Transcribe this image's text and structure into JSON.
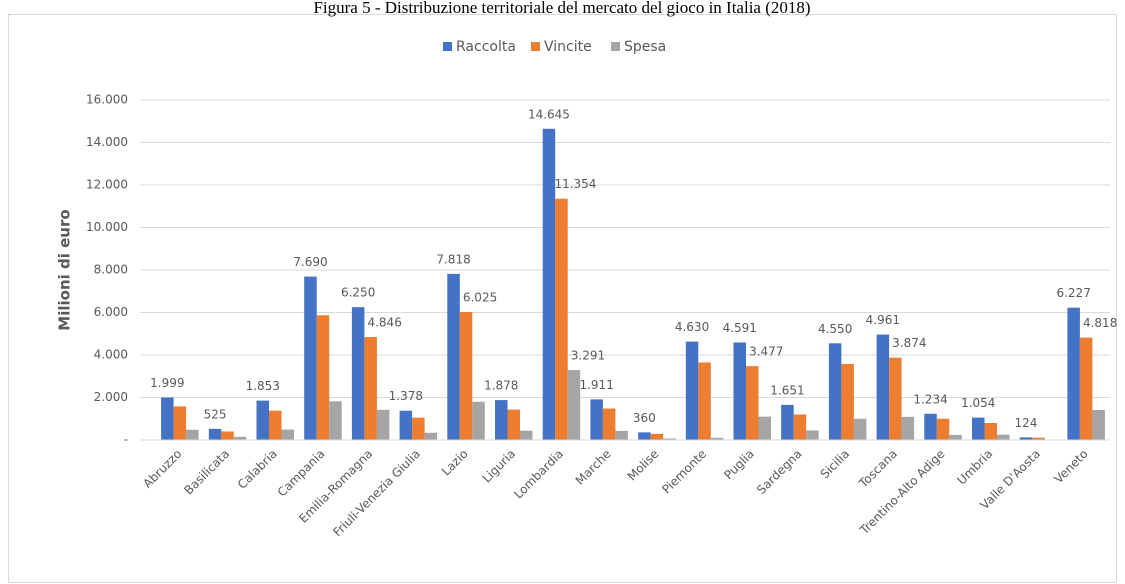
{
  "chart_data": {
    "type": "bar",
    "title": "Figura 5 - Distribuzione territoriale del mercato del gioco in Italia (2018)",
    "ylabel": "Milioni di euro",
    "categories": [
      "Abruzzo",
      "Basilicata",
      "Calabria",
      "Campania",
      "Emilia-Romagna",
      "Friuli-Venezia Giulia",
      "Lazio",
      "Liguria",
      "Lombardia",
      "Marche",
      "Molise",
      "Piemonte",
      "Puglia",
      "Sardegna",
      "Sicilia",
      "Toscana",
      "Trentino-Alto Adige",
      "Umbria",
      "Valle D'Aosta",
      "Veneto"
    ],
    "series": [
      {
        "name": "Raccolta",
        "color": "#4472c4",
        "values": [
          1999,
          525,
          1853,
          7690,
          6250,
          1378,
          7818,
          1878,
          14645,
          1911,
          360,
          4630,
          4591,
          1651,
          4550,
          4961,
          1234,
          1054,
          124,
          6227
        ],
        "value_labels": [
          "1.999",
          "525",
          "1.853",
          "7.690",
          "6.250",
          "1.378",
          "7.818",
          "1.878",
          "14.645",
          "1.911",
          "360",
          "4.630",
          "4.591",
          "1.651",
          "4.550",
          "4.961",
          "1.234",
          "1.054",
          "124",
          "6.227"
        ]
      },
      {
        "name": "Vincite",
        "color": "#ed7d31",
        "values": [
          1580,
          400,
          1380,
          5870,
          4846,
          1050,
          6025,
          1430,
          11354,
          1480,
          290,
          3650,
          3477,
          1200,
          3580,
          3874,
          1000,
          800,
          110,
          4818
        ],
        "value_labels": [
          null,
          null,
          null,
          null,
          "4.846",
          null,
          "6.025",
          null,
          "11.354",
          null,
          null,
          null,
          "3.477",
          null,
          null,
          "3.874",
          null,
          null,
          null,
          "4.818"
        ]
      },
      {
        "name": "Spesa",
        "color": "#a5a5a5",
        "values": [
          480,
          150,
          490,
          1820,
          1420,
          340,
          1800,
          440,
          3291,
          430,
          70,
          100,
          1100,
          450,
          1000,
          1090,
          240,
          250,
          14,
          1410
        ],
        "value_labels": [
          null,
          null,
          null,
          null,
          null,
          null,
          null,
          null,
          "3.291",
          null,
          null,
          null,
          null,
          null,
          null,
          null,
          null,
          null,
          null,
          null
        ]
      }
    ],
    "ylim": [
      0,
      16000
    ],
    "yticks": [
      {
        "value": 0,
        "label": "-"
      },
      {
        "value": 2000,
        "label": "2.000"
      },
      {
        "value": 4000,
        "label": "4.000"
      },
      {
        "value": 6000,
        "label": "6.000"
      },
      {
        "value": 8000,
        "label": "8.000"
      },
      {
        "value": 10000,
        "label": "10.000"
      },
      {
        "value": 12000,
        "label": "12.000"
      },
      {
        "value": 14000,
        "label": "14.000"
      },
      {
        "value": 16000,
        "label": "16.000"
      }
    ],
    "grid": true,
    "legend": "top"
  }
}
